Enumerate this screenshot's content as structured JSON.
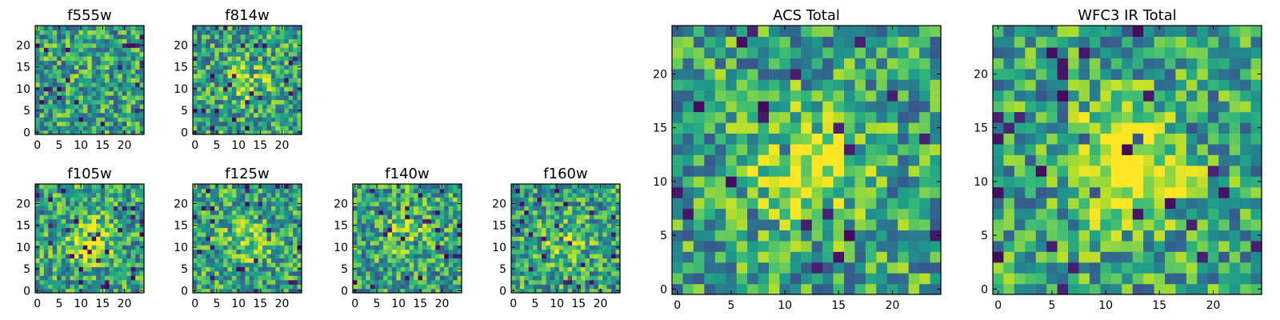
{
  "chart_data": [
    {
      "type": "heatmap",
      "title": "f555w",
      "xticks": [
        "0",
        "5",
        "10",
        "15",
        "20"
      ],
      "yticks": [
        "0",
        "5",
        "10",
        "15",
        "20"
      ],
      "xlim": [
        -0.5,
        24.5
      ],
      "ylim": [
        -0.5,
        24.5
      ],
      "grid_size": 25,
      "colormap": "viridis",
      "pattern": "noise",
      "seed": 11
    },
    {
      "type": "heatmap",
      "title": "f814w",
      "xticks": [
        "0",
        "5",
        "10",
        "15",
        "20"
      ],
      "yticks": [
        "0",
        "5",
        "10",
        "15",
        "20"
      ],
      "xlim": [
        -0.5,
        24.5
      ],
      "ylim": [
        -0.5,
        24.5
      ],
      "grid_size": 25,
      "colormap": "viridis",
      "pattern": "faint central source",
      "seed": 23
    },
    {
      "type": "heatmap",
      "title": "f105w",
      "xticks": [
        "0",
        "5",
        "10",
        "15",
        "20"
      ],
      "yticks": [
        "0",
        "5",
        "10",
        "15",
        "20"
      ],
      "xlim": [
        -0.5,
        24.5
      ],
      "ylim": [
        -0.5,
        24.5
      ],
      "grid_size": 25,
      "colormap": "viridis",
      "pattern": "central source",
      "seed": 37
    },
    {
      "type": "heatmap",
      "title": "f125w",
      "xticks": [
        "0",
        "5",
        "10",
        "15",
        "20"
      ],
      "yticks": [
        "0",
        "5",
        "10",
        "15",
        "20"
      ],
      "xlim": [
        -0.5,
        24.5
      ],
      "ylim": [
        -0.5,
        24.5
      ],
      "grid_size": 25,
      "colormap": "viridis",
      "pattern": "faint central source",
      "seed": 41
    },
    {
      "type": "heatmap",
      "title": "f140w",
      "xticks": [
        "0",
        "5",
        "10",
        "15",
        "20"
      ],
      "yticks": [
        "0",
        "5",
        "10",
        "15",
        "20"
      ],
      "xlim": [
        -0.5,
        24.5
      ],
      "ylim": [
        -0.5,
        24.5
      ],
      "grid_size": 25,
      "colormap": "viridis",
      "pattern": "faint central source",
      "seed": 53
    },
    {
      "type": "heatmap",
      "title": "f160w",
      "xticks": [
        "0",
        "5",
        "10",
        "15",
        "20"
      ],
      "yticks": [
        "0",
        "5",
        "10",
        "15",
        "20"
      ],
      "xlim": [
        -0.5,
        24.5
      ],
      "ylim": [
        -0.5,
        24.5
      ],
      "grid_size": 25,
      "colormap": "viridis",
      "pattern": "faint central source",
      "seed": 67
    },
    {
      "type": "heatmap",
      "title": "ACS Total",
      "xticks": [
        "0",
        "5",
        "10",
        "15",
        "20"
      ],
      "yticks": [
        "0",
        "5",
        "10",
        "15",
        "20"
      ],
      "xlim": [
        -0.5,
        24.5
      ],
      "ylim": [
        -0.5,
        24.5
      ],
      "grid_size": 25,
      "colormap": "viridis",
      "pattern": "central source",
      "seed": 79
    },
    {
      "type": "heatmap",
      "title": "WFC3 IR Total",
      "xticks": [
        "0",
        "5",
        "10",
        "15",
        "20"
      ],
      "yticks": [
        "0",
        "5",
        "10",
        "15",
        "20"
      ],
      "xlim": [
        -0.5,
        24.5
      ],
      "ylim": [
        -0.5,
        24.5
      ],
      "grid_size": 25,
      "colormap": "viridis",
      "pattern": "bright central source",
      "seed": 97
    }
  ]
}
